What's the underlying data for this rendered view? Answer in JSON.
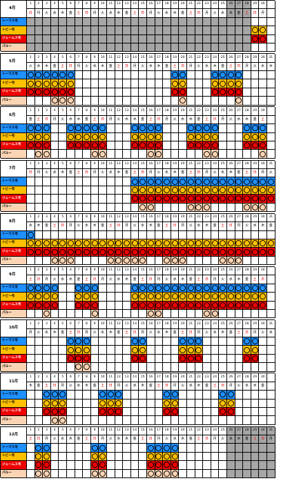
{
  "colors": {
    "blue": "#1e90ff",
    "yellow": "#ffc000",
    "red": "#ee0000",
    "orange": "#fbd4b4",
    "grey": "#a6a6a6",
    "red_text": "#e00000"
  },
  "legend_labels": [
    "トーマス号",
    "トビー号",
    "ジェームス号",
    "パルー"
  ],
  "months": [
    {
      "label": "4月",
      "first_dow": 0,
      "ndays": 30,
      "rows": [
        [],
        [
          29,
          30
        ],
        [
          29,
          30
        ],
        []
      ],
      "grey_from": 1,
      "grey_to": 28
    },
    {
      "label": "5月",
      "first_dow": 2,
      "ndays": 31,
      "rows": [
        [
          1,
          2,
          3,
          4,
          5,
          6,
          19,
          20,
          24,
          25,
          26,
          27
        ],
        [
          1,
          2,
          3,
          4,
          5,
          6,
          19,
          20,
          24,
          25,
          26,
          27
        ],
        [
          1,
          2,
          3,
          4,
          5,
          6,
          19,
          20,
          24,
          25,
          26,
          27
        ],
        [
          4,
          5,
          6,
          20,
          27
        ]
      ]
    },
    {
      "label": "6月",
      "first_dow": 5,
      "ndays": 30,
      "rows": [
        [
          1,
          2,
          3,
          6,
          7,
          8,
          9,
          10,
          14,
          15,
          16,
          17,
          21,
          22,
          23,
          24,
          28,
          29,
          30
        ],
        [
          1,
          2,
          3,
          6,
          7,
          8,
          9,
          10,
          14,
          15,
          16,
          17,
          21,
          22,
          23,
          24,
          28,
          29,
          30
        ],
        [
          1,
          2,
          3,
          6,
          7,
          8,
          9,
          10,
          14,
          15,
          16,
          17,
          21,
          22,
          23,
          24,
          28,
          29,
          30
        ],
        [
          2,
          3,
          9,
          10,
          16,
          17,
          23,
          24,
          30
        ]
      ]
    },
    {
      "label": "7月",
      "first_dow": 0,
      "ndays": 31,
      "rows": [
        [
          14,
          15,
          16,
          17,
          18,
          19,
          20,
          21,
          22,
          23,
          24,
          25,
          26,
          27,
          28,
          29,
          30,
          31
        ],
        [
          14,
          15,
          16,
          17,
          18,
          19,
          20,
          21,
          22,
          23,
          24,
          25,
          26,
          27,
          28,
          29,
          30,
          31
        ],
        [
          14,
          15,
          16,
          17,
          18,
          19,
          20,
          21,
          22,
          23,
          24,
          25,
          26,
          27,
          28,
          29,
          30,
          31
        ],
        [
          15,
          16,
          21,
          22,
          23,
          28,
          29,
          30
        ]
      ]
    },
    {
      "label": "8月",
      "first_dow": 3,
      "ndays": 31,
      "rows": [
        [
          1
        ],
        [
          1,
          2,
          3,
          4,
          5,
          6,
          7,
          8,
          9,
          10,
          11,
          12,
          13,
          14,
          15,
          16,
          17,
          18,
          19,
          20,
          21,
          22,
          23,
          24,
          25,
          26,
          27,
          28,
          29,
          30,
          31
        ],
        [
          1,
          2,
          3,
          4,
          5,
          6,
          7,
          8,
          9,
          10,
          11,
          12,
          13,
          14,
          15,
          16,
          17,
          18,
          19,
          20,
          21,
          22,
          23,
          24,
          25,
          26,
          27,
          28,
          29,
          30,
          31
        ],
        [
          4,
          5,
          6,
          11,
          12,
          13,
          14,
          15,
          18,
          19,
          20,
          25,
          26,
          27
        ]
      ]
    },
    {
      "label": "9月",
      "first_dow": 6,
      "ndays": 30,
      "rows": [
        [
          1,
          2,
          3,
          4,
          7,
          8,
          9,
          14,
          15,
          16,
          17,
          18,
          19,
          20,
          21,
          22,
          23,
          24,
          25,
          26,
          27,
          28,
          29,
          30
        ],
        [
          1,
          2,
          3,
          4,
          7,
          8,
          9,
          14,
          15,
          16,
          17,
          18,
          19,
          20,
          21,
          22,
          23,
          24,
          25,
          26,
          27,
          28,
          29,
          30
        ],
        [
          1,
          2,
          3,
          4,
          7,
          8,
          9,
          14,
          15,
          16,
          17,
          18,
          19,
          20,
          21,
          22,
          23,
          24,
          25,
          26,
          27,
          28,
          29,
          30
        ],
        [
          3,
          9,
          16,
          17,
          23,
          24
        ]
      ]
    },
    {
      "label": "10月",
      "first_dow": 1,
      "ndays": 31,
      "rows": [
        [
          6,
          7,
          8,
          14,
          15,
          20,
          21,
          22,
          28,
          29
        ],
        [
          6,
          7,
          8,
          14,
          15,
          20,
          21,
          22,
          28,
          29
        ],
        [
          6,
          7,
          8,
          14,
          15,
          20,
          21,
          22,
          28,
          29
        ],
        [
          7,
          8
        ]
      ]
    },
    {
      "label": "11月",
      "first_dow": 4,
      "ndays": 30,
      "rows": [
        [
          3,
          4,
          5,
          10,
          11,
          12,
          18,
          19,
          25,
          26
        ],
        [
          3,
          4,
          5,
          10,
          11,
          12,
          18,
          19,
          25,
          26
        ],
        [
          3,
          4,
          5,
          10,
          11,
          12,
          18,
          19,
          25,
          26
        ],
        [
          4,
          5
        ]
      ]
    },
    {
      "label": "12月",
      "first_dow": 6,
      "ndays": 31,
      "rows": [
        [
          2,
          3,
          9,
          10,
          16,
          17,
          18,
          19
        ],
        [
          2,
          3,
          9,
          10,
          16,
          17,
          18,
          19
        ],
        [
          2,
          3,
          9,
          10,
          16,
          17,
          18,
          19
        ],
        [
          2,
          3,
          9,
          10,
          16,
          17,
          18,
          19
        ]
      ],
      "grey_from": 26,
      "grey_to": 31
    },
    {
      "label": "",
      "first_dow": 0,
      "ndays": 0,
      "rows": [
        [],
        [],
        [],
        []
      ]
    }
  ],
  "weekdays": [
    "日",
    "月",
    "火",
    "水",
    "木",
    "金",
    "土"
  ]
}
